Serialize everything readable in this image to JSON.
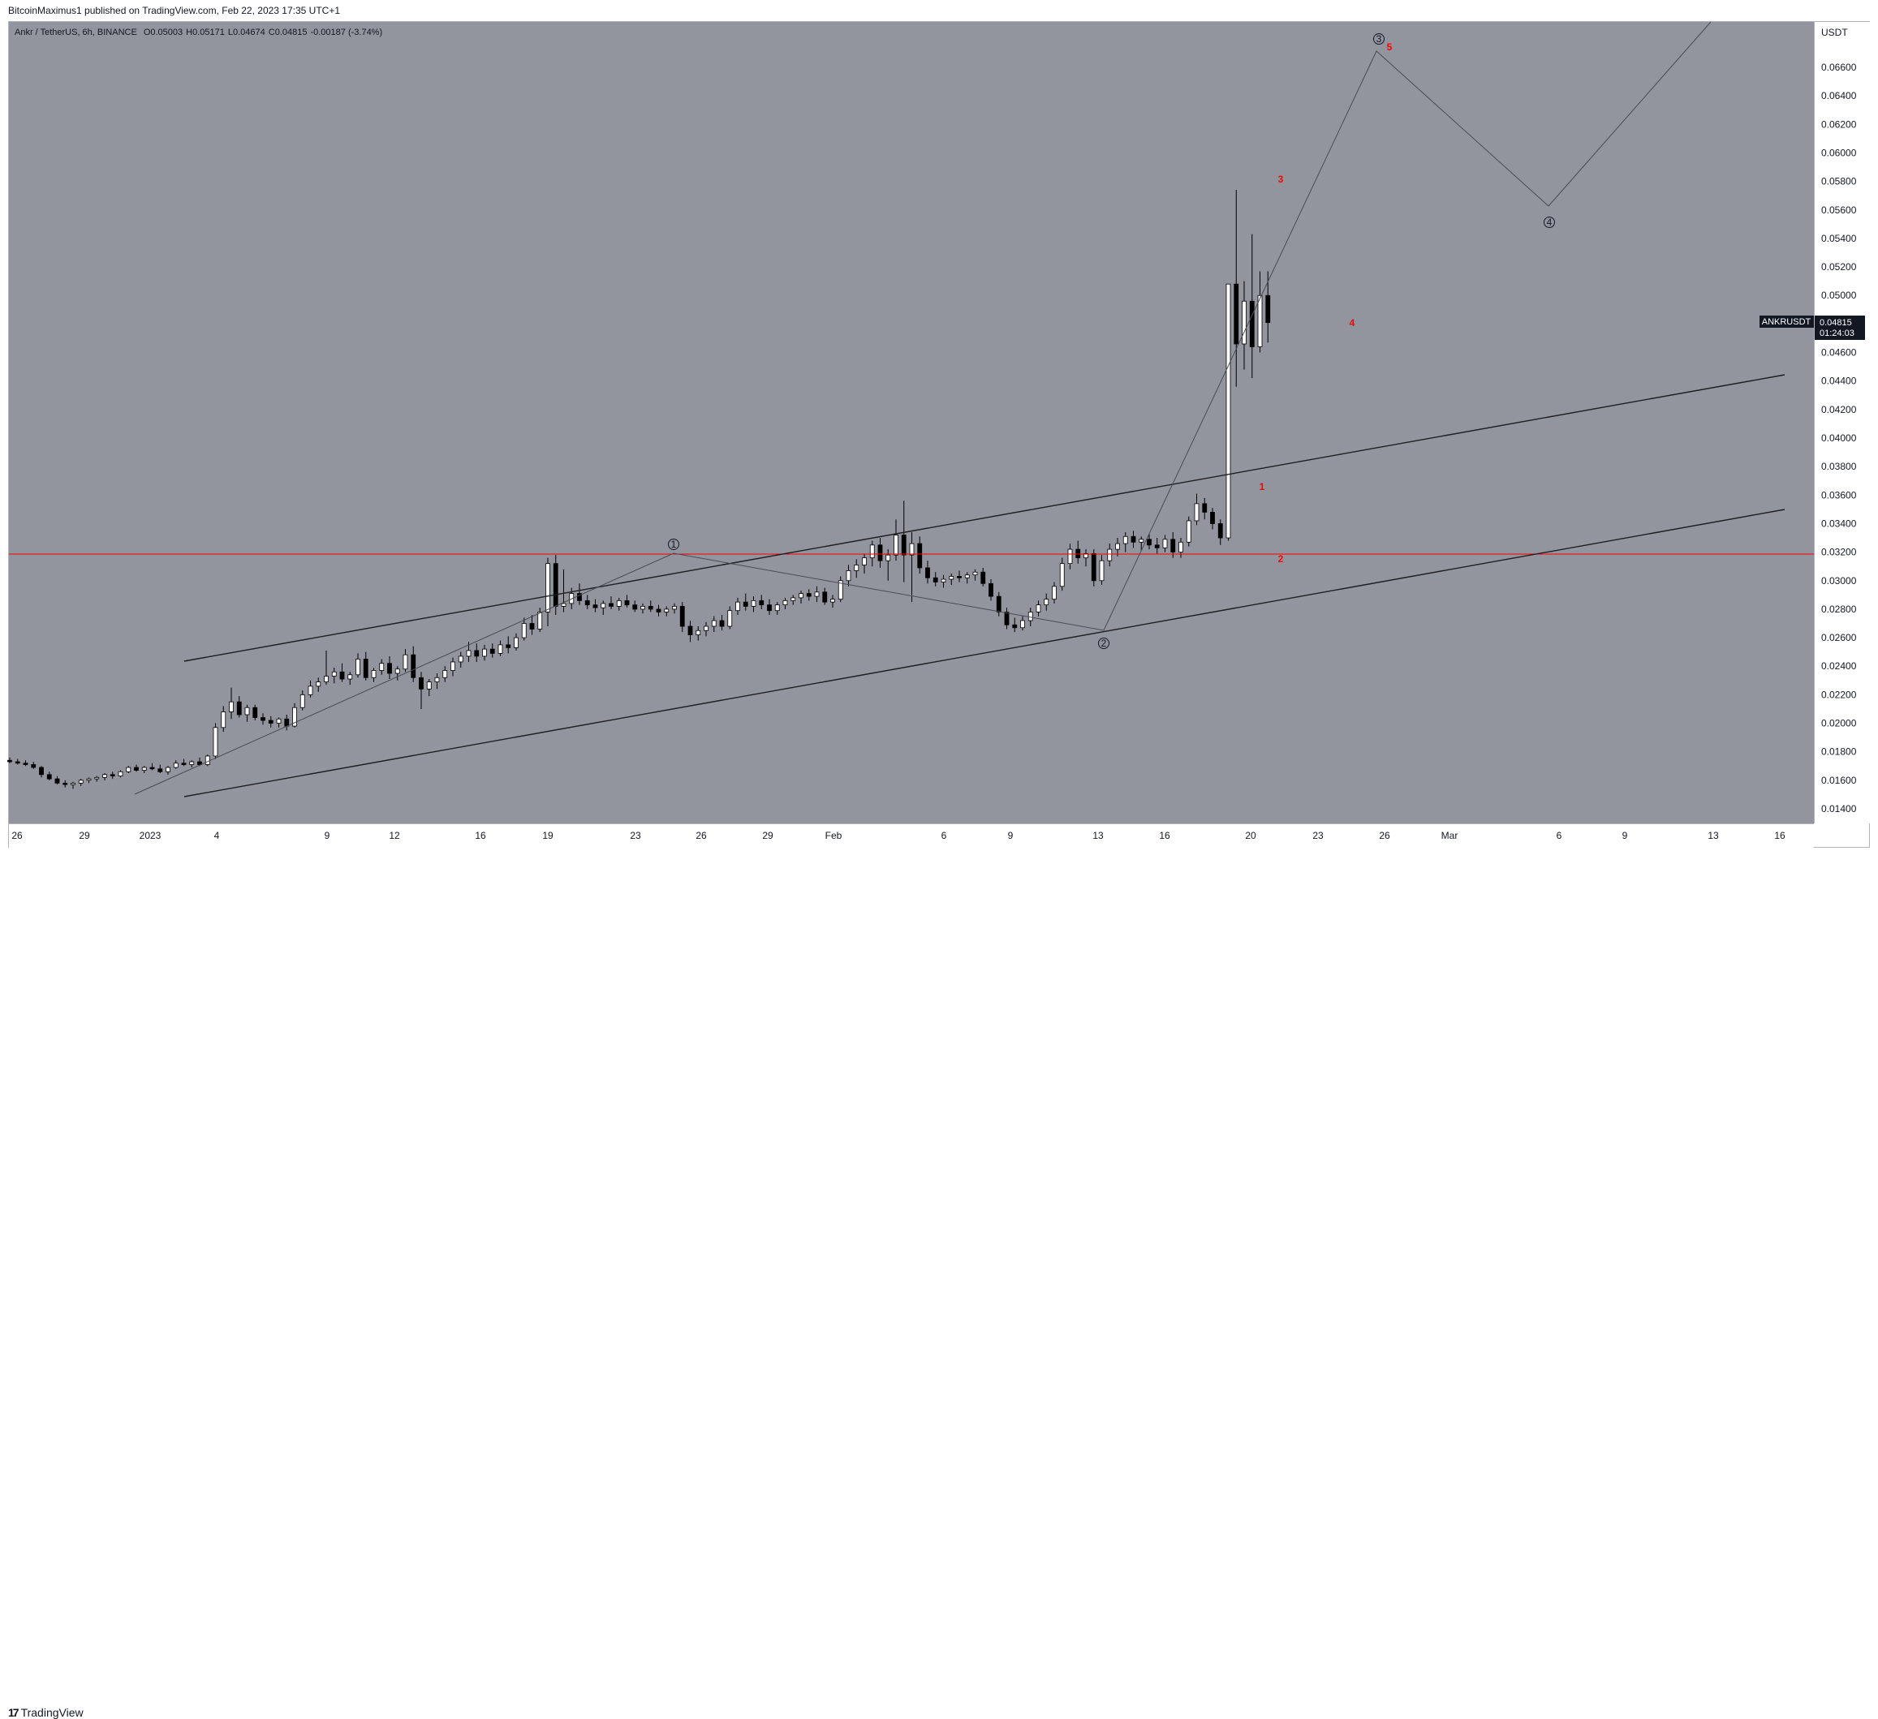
{
  "header": {
    "publisher_text": "BitcoinMaximus1 published on TradingView.com, Feb 22, 2023 17:35 UTC+1"
  },
  "legend": {
    "symbol_text": "Ankr / TetherUS, 6h, BINANCE",
    "o_label": "O",
    "o_value": "0.05003",
    "h_label": "H",
    "h_value": "0.05171",
    "l_label": "L",
    "l_value": "0.04674",
    "c_label": "C",
    "c_value": "0.04815",
    "change": "-0.00187 (-3.74%)"
  },
  "price_axis": {
    "currency": "USDT",
    "ticks": [
      "0.06600",
      "0.06400",
      "0.06200",
      "0.06000",
      "0.05800",
      "0.05600",
      "0.05400",
      "0.05200",
      "0.05000",
      "0.04600",
      "0.04400",
      "0.04200",
      "0.04000",
      "0.03800",
      "0.03600",
      "0.03400",
      "0.03200",
      "0.03000",
      "0.02800",
      "0.02600",
      "0.02400",
      "0.02200",
      "0.02000",
      "0.01800",
      "0.01600",
      "0.01400"
    ],
    "symbol_tag": "ANKRUSDT",
    "last_price": "0.04815",
    "countdown": "01:24:03"
  },
  "time_axis": {
    "ticks": [
      "26",
      "29",
      "2023",
      "4",
      "9",
      "12",
      "16",
      "19",
      "23",
      "26",
      "29",
      "Feb",
      "6",
      "9",
      "13",
      "16",
      "20",
      "23",
      "26",
      "Mar",
      "6",
      "9",
      "13",
      "16"
    ]
  },
  "annotations": {
    "wave_circles": [
      "1",
      "2",
      "3",
      "4"
    ],
    "red_counts": [
      "1",
      "2",
      "3",
      "4",
      "5"
    ]
  },
  "footer": {
    "brand": "TradingView"
  },
  "colors": {
    "plot_bg": "#92949e",
    "horizontal_line": "#ff0000",
    "channel": "#1e1e1e",
    "wave_path": "#5a5c64",
    "wave_count": "#ff0000"
  },
  "chart_data": {
    "type": "candlestick",
    "symbol": "ANKRUSDT",
    "timeframe": "6h",
    "y_range": [
      0.0132,
      0.0688
    ],
    "horizontal_level": 0.0318,
    "candles": [
      {
        "o": 0.0174,
        "h": 0.0176,
        "l": 0.0172,
        "c": 0.0173
      },
      {
        "o": 0.0173,
        "h": 0.0175,
        "l": 0.0171,
        "c": 0.0172
      },
      {
        "o": 0.0172,
        "h": 0.0174,
        "l": 0.017,
        "c": 0.0171
      },
      {
        "o": 0.0171,
        "h": 0.0173,
        "l": 0.0168,
        "c": 0.0169
      },
      {
        "o": 0.0169,
        "h": 0.017,
        "l": 0.0162,
        "c": 0.0164
      },
      {
        "o": 0.0164,
        "h": 0.0166,
        "l": 0.016,
        "c": 0.0161
      },
      {
        "o": 0.0161,
        "h": 0.0163,
        "l": 0.0157,
        "c": 0.0158
      },
      {
        "o": 0.0158,
        "h": 0.016,
        "l": 0.0155,
        "c": 0.0157
      },
      {
        "o": 0.0157,
        "h": 0.0159,
        "l": 0.0154,
        "c": 0.0158
      },
      {
        "o": 0.0158,
        "h": 0.0161,
        "l": 0.0156,
        "c": 0.016
      },
      {
        "o": 0.016,
        "h": 0.0162,
        "l": 0.0158,
        "c": 0.0161
      },
      {
        "o": 0.0161,
        "h": 0.0163,
        "l": 0.0159,
        "c": 0.0162
      },
      {
        "o": 0.0162,
        "h": 0.0165,
        "l": 0.016,
        "c": 0.0164
      },
      {
        "o": 0.0164,
        "h": 0.0166,
        "l": 0.0161,
        "c": 0.0163
      },
      {
        "o": 0.0163,
        "h": 0.0167,
        "l": 0.0162,
        "c": 0.0166
      },
      {
        "o": 0.0166,
        "h": 0.017,
        "l": 0.0165,
        "c": 0.0169
      },
      {
        "o": 0.0169,
        "h": 0.0171,
        "l": 0.0166,
        "c": 0.0167
      },
      {
        "o": 0.0167,
        "h": 0.017,
        "l": 0.0165,
        "c": 0.0169
      },
      {
        "o": 0.0169,
        "h": 0.0172,
        "l": 0.0167,
        "c": 0.0168
      },
      {
        "o": 0.0168,
        "h": 0.0171,
        "l": 0.0165,
        "c": 0.0166
      },
      {
        "o": 0.0166,
        "h": 0.017,
        "l": 0.0164,
        "c": 0.0169
      },
      {
        "o": 0.0169,
        "h": 0.0174,
        "l": 0.0168,
        "c": 0.0172
      },
      {
        "o": 0.0172,
        "h": 0.0175,
        "l": 0.017,
        "c": 0.0171
      },
      {
        "o": 0.0171,
        "h": 0.0174,
        "l": 0.0169,
        "c": 0.0173
      },
      {
        "o": 0.0173,
        "h": 0.0176,
        "l": 0.017,
        "c": 0.0171
      },
      {
        "o": 0.0171,
        "h": 0.0178,
        "l": 0.017,
        "c": 0.0177
      },
      {
        "o": 0.0177,
        "h": 0.02,
        "l": 0.0175,
        "c": 0.0197
      },
      {
        "o": 0.0197,
        "h": 0.0212,
        "l": 0.0194,
        "c": 0.0208
      },
      {
        "o": 0.0208,
        "h": 0.0225,
        "l": 0.0203,
        "c": 0.0215
      },
      {
        "o": 0.0215,
        "h": 0.0219,
        "l": 0.0204,
        "c": 0.0206
      },
      {
        "o": 0.0206,
        "h": 0.0213,
        "l": 0.0201,
        "c": 0.0211
      },
      {
        "o": 0.0211,
        "h": 0.0213,
        "l": 0.0202,
        "c": 0.0204
      },
      {
        "o": 0.0204,
        "h": 0.0207,
        "l": 0.0199,
        "c": 0.0202
      },
      {
        "o": 0.0202,
        "h": 0.0205,
        "l": 0.0197,
        "c": 0.02
      },
      {
        "o": 0.02,
        "h": 0.0204,
        "l": 0.0197,
        "c": 0.0203
      },
      {
        "o": 0.0203,
        "h": 0.0206,
        "l": 0.0195,
        "c": 0.0198
      },
      {
        "o": 0.0198,
        "h": 0.0214,
        "l": 0.0197,
        "c": 0.0211
      },
      {
        "o": 0.0211,
        "h": 0.0223,
        "l": 0.0209,
        "c": 0.022
      },
      {
        "o": 0.022,
        "h": 0.023,
        "l": 0.0218,
        "c": 0.0226
      },
      {
        "o": 0.0226,
        "h": 0.0232,
        "l": 0.0222,
        "c": 0.0229
      },
      {
        "o": 0.0229,
        "h": 0.0251,
        "l": 0.0227,
        "c": 0.0233
      },
      {
        "o": 0.0233,
        "h": 0.0239,
        "l": 0.0228,
        "c": 0.0236
      },
      {
        "o": 0.0236,
        "h": 0.0242,
        "l": 0.0229,
        "c": 0.0231
      },
      {
        "o": 0.0231,
        "h": 0.0236,
        "l": 0.0227,
        "c": 0.0234
      },
      {
        "o": 0.0234,
        "h": 0.0249,
        "l": 0.0232,
        "c": 0.0245
      },
      {
        "o": 0.0245,
        "h": 0.025,
        "l": 0.023,
        "c": 0.0232
      },
      {
        "o": 0.0232,
        "h": 0.0239,
        "l": 0.0229,
        "c": 0.0237
      },
      {
        "o": 0.0237,
        "h": 0.0245,
        "l": 0.0234,
        "c": 0.0242
      },
      {
        "o": 0.0242,
        "h": 0.0247,
        "l": 0.0231,
        "c": 0.0235
      },
      {
        "o": 0.0235,
        "h": 0.024,
        "l": 0.023,
        "c": 0.0238
      },
      {
        "o": 0.0238,
        "h": 0.0252,
        "l": 0.0236,
        "c": 0.0248
      },
      {
        "o": 0.0248,
        "h": 0.0254,
        "l": 0.0229,
        "c": 0.0232
      },
      {
        "o": 0.0232,
        "h": 0.0236,
        "l": 0.021,
        "c": 0.0224
      },
      {
        "o": 0.0224,
        "h": 0.0231,
        "l": 0.0219,
        "c": 0.0229
      },
      {
        "o": 0.0229,
        "h": 0.0235,
        "l": 0.0224,
        "c": 0.0232
      },
      {
        "o": 0.0232,
        "h": 0.024,
        "l": 0.0229,
        "c": 0.0237
      },
      {
        "o": 0.0237,
        "h": 0.0246,
        "l": 0.0233,
        "c": 0.0243
      },
      {
        "o": 0.0243,
        "h": 0.025,
        "l": 0.0239,
        "c": 0.0247
      },
      {
        "o": 0.0247,
        "h": 0.0257,
        "l": 0.0243,
        "c": 0.0251
      },
      {
        "o": 0.0251,
        "h": 0.0256,
        "l": 0.0243,
        "c": 0.0247
      },
      {
        "o": 0.0247,
        "h": 0.0255,
        "l": 0.0244,
        "c": 0.0252
      },
      {
        "o": 0.0252,
        "h": 0.0256,
        "l": 0.0246,
        "c": 0.0249
      },
      {
        "o": 0.0249,
        "h": 0.0258,
        "l": 0.0247,
        "c": 0.0255
      },
      {
        "o": 0.0255,
        "h": 0.0261,
        "l": 0.0249,
        "c": 0.0253
      },
      {
        "o": 0.0253,
        "h": 0.0263,
        "l": 0.0251,
        "c": 0.026
      },
      {
        "o": 0.026,
        "h": 0.0274,
        "l": 0.0258,
        "c": 0.027
      },
      {
        "o": 0.027,
        "h": 0.0276,
        "l": 0.0262,
        "c": 0.0266
      },
      {
        "o": 0.0266,
        "h": 0.0281,
        "l": 0.0264,
        "c": 0.0278
      },
      {
        "o": 0.0278,
        "h": 0.0316,
        "l": 0.0268,
        "c": 0.0312
      },
      {
        "o": 0.0312,
        "h": 0.0318,
        "l": 0.0276,
        "c": 0.0282
      },
      {
        "o": 0.0282,
        "h": 0.0308,
        "l": 0.0278,
        "c": 0.0284
      },
      {
        "o": 0.0284,
        "h": 0.0295,
        "l": 0.028,
        "c": 0.0291
      },
      {
        "o": 0.0291,
        "h": 0.0298,
        "l": 0.0283,
        "c": 0.0286
      },
      {
        "o": 0.0286,
        "h": 0.029,
        "l": 0.028,
        "c": 0.0283
      },
      {
        "o": 0.0283,
        "h": 0.0287,
        "l": 0.0278,
        "c": 0.0281
      },
      {
        "o": 0.0281,
        "h": 0.0286,
        "l": 0.0276,
        "c": 0.0284
      },
      {
        "o": 0.0284,
        "h": 0.0289,
        "l": 0.028,
        "c": 0.0282
      },
      {
        "o": 0.0282,
        "h": 0.0288,
        "l": 0.0279,
        "c": 0.0286
      },
      {
        "o": 0.0286,
        "h": 0.029,
        "l": 0.0281,
        "c": 0.0283
      },
      {
        "o": 0.0283,
        "h": 0.0286,
        "l": 0.0278,
        "c": 0.028
      },
      {
        "o": 0.028,
        "h": 0.0284,
        "l": 0.0277,
        "c": 0.0282
      },
      {
        "o": 0.0282,
        "h": 0.0286,
        "l": 0.0278,
        "c": 0.028
      },
      {
        "o": 0.028,
        "h": 0.0283,
        "l": 0.0275,
        "c": 0.0278
      },
      {
        "o": 0.0278,
        "h": 0.0282,
        "l": 0.0275,
        "c": 0.028
      },
      {
        "o": 0.028,
        "h": 0.0284,
        "l": 0.0277,
        "c": 0.0282
      },
      {
        "o": 0.0282,
        "h": 0.0285,
        "l": 0.0264,
        "c": 0.0268
      },
      {
        "o": 0.0268,
        "h": 0.0272,
        "l": 0.0257,
        "c": 0.0262
      },
      {
        "o": 0.0262,
        "h": 0.0268,
        "l": 0.0258,
        "c": 0.0265
      },
      {
        "o": 0.0265,
        "h": 0.0271,
        "l": 0.0261,
        "c": 0.0268
      },
      {
        "o": 0.0268,
        "h": 0.0275,
        "l": 0.0264,
        "c": 0.0272
      },
      {
        "o": 0.0272,
        "h": 0.0276,
        "l": 0.0265,
        "c": 0.0268
      },
      {
        "o": 0.0268,
        "h": 0.0282,
        "l": 0.0266,
        "c": 0.0279
      },
      {
        "o": 0.0279,
        "h": 0.0288,
        "l": 0.0276,
        "c": 0.0285
      },
      {
        "o": 0.0285,
        "h": 0.0291,
        "l": 0.0279,
        "c": 0.0282
      },
      {
        "o": 0.0282,
        "h": 0.0289,
        "l": 0.0278,
        "c": 0.0286
      },
      {
        "o": 0.0286,
        "h": 0.029,
        "l": 0.028,
        "c": 0.0283
      },
      {
        "o": 0.0283,
        "h": 0.0287,
        "l": 0.0276,
        "c": 0.0279
      },
      {
        "o": 0.0279,
        "h": 0.0285,
        "l": 0.0276,
        "c": 0.0283
      },
      {
        "o": 0.0283,
        "h": 0.0288,
        "l": 0.028,
        "c": 0.0286
      },
      {
        "o": 0.0286,
        "h": 0.029,
        "l": 0.0283,
        "c": 0.0288
      },
      {
        "o": 0.0288,
        "h": 0.0293,
        "l": 0.0284,
        "c": 0.0291
      },
      {
        "o": 0.0291,
        "h": 0.0294,
        "l": 0.0286,
        "c": 0.0289
      },
      {
        "o": 0.0289,
        "h": 0.0296,
        "l": 0.0285,
        "c": 0.0292
      },
      {
        "o": 0.0292,
        "h": 0.0295,
        "l": 0.0283,
        "c": 0.0285
      },
      {
        "o": 0.0285,
        "h": 0.029,
        "l": 0.0281,
        "c": 0.0287
      },
      {
        "o": 0.0287,
        "h": 0.0303,
        "l": 0.0285,
        "c": 0.03
      },
      {
        "o": 0.03,
        "h": 0.0311,
        "l": 0.0296,
        "c": 0.0307
      },
      {
        "o": 0.0307,
        "h": 0.0315,
        "l": 0.0302,
        "c": 0.0311
      },
      {
        "o": 0.0311,
        "h": 0.0319,
        "l": 0.0305,
        "c": 0.0316
      },
      {
        "o": 0.0316,
        "h": 0.0328,
        "l": 0.031,
        "c": 0.0325
      },
      {
        "o": 0.0325,
        "h": 0.033,
        "l": 0.0309,
        "c": 0.0314
      },
      {
        "o": 0.0314,
        "h": 0.0322,
        "l": 0.03,
        "c": 0.0318
      },
      {
        "o": 0.0318,
        "h": 0.0343,
        "l": 0.0314,
        "c": 0.0332
      },
      {
        "o": 0.0332,
        "h": 0.0356,
        "l": 0.0299,
        "c": 0.0318
      },
      {
        "o": 0.0318,
        "h": 0.0334,
        "l": 0.0285,
        "c": 0.0326
      },
      {
        "o": 0.0326,
        "h": 0.0331,
        "l": 0.0305,
        "c": 0.0309
      },
      {
        "o": 0.0309,
        "h": 0.0314,
        "l": 0.0298,
        "c": 0.0302
      },
      {
        "o": 0.0302,
        "h": 0.0306,
        "l": 0.0296,
        "c": 0.0299
      },
      {
        "o": 0.0299,
        "h": 0.0304,
        "l": 0.0295,
        "c": 0.0301
      },
      {
        "o": 0.0301,
        "h": 0.0305,
        "l": 0.0297,
        "c": 0.0303
      },
      {
        "o": 0.0303,
        "h": 0.0307,
        "l": 0.0299,
        "c": 0.0302
      },
      {
        "o": 0.0302,
        "h": 0.0306,
        "l": 0.0298,
        "c": 0.0304
      },
      {
        "o": 0.0304,
        "h": 0.0308,
        "l": 0.03,
        "c": 0.0306
      },
      {
        "o": 0.0306,
        "h": 0.0309,
        "l": 0.0296,
        "c": 0.0298
      },
      {
        "o": 0.0298,
        "h": 0.0301,
        "l": 0.0286,
        "c": 0.0289
      },
      {
        "o": 0.0289,
        "h": 0.0292,
        "l": 0.0275,
        "c": 0.0278
      },
      {
        "o": 0.0278,
        "h": 0.0281,
        "l": 0.0266,
        "c": 0.0269
      },
      {
        "o": 0.0269,
        "h": 0.0274,
        "l": 0.0264,
        "c": 0.0267
      },
      {
        "o": 0.0267,
        "h": 0.0275,
        "l": 0.0265,
        "c": 0.0272
      },
      {
        "o": 0.0272,
        "h": 0.0281,
        "l": 0.0268,
        "c": 0.0278
      },
      {
        "o": 0.0278,
        "h": 0.0286,
        "l": 0.0275,
        "c": 0.0283
      },
      {
        "o": 0.0283,
        "h": 0.0291,
        "l": 0.0279,
        "c": 0.0287
      },
      {
        "o": 0.0287,
        "h": 0.0299,
        "l": 0.0284,
        "c": 0.0296
      },
      {
        "o": 0.0296,
        "h": 0.0316,
        "l": 0.0293,
        "c": 0.0312
      },
      {
        "o": 0.0312,
        "h": 0.0326,
        "l": 0.0308,
        "c": 0.0322
      },
      {
        "o": 0.0322,
        "h": 0.0328,
        "l": 0.0312,
        "c": 0.0316
      },
      {
        "o": 0.0316,
        "h": 0.0322,
        "l": 0.031,
        "c": 0.0319
      },
      {
        "o": 0.0319,
        "h": 0.0322,
        "l": 0.0296,
        "c": 0.03
      },
      {
        "o": 0.03,
        "h": 0.0318,
        "l": 0.0297,
        "c": 0.0314
      },
      {
        "o": 0.0314,
        "h": 0.0326,
        "l": 0.031,
        "c": 0.0322
      },
      {
        "o": 0.0322,
        "h": 0.033,
        "l": 0.0317,
        "c": 0.0326
      },
      {
        "o": 0.0326,
        "h": 0.0334,
        "l": 0.032,
        "c": 0.0331
      },
      {
        "o": 0.0331,
        "h": 0.0335,
        "l": 0.0323,
        "c": 0.0327
      },
      {
        "o": 0.0327,
        "h": 0.0331,
        "l": 0.0321,
        "c": 0.0329
      },
      {
        "o": 0.0329,
        "h": 0.0333,
        "l": 0.0322,
        "c": 0.0325
      },
      {
        "o": 0.0325,
        "h": 0.033,
        "l": 0.0319,
        "c": 0.0323
      },
      {
        "o": 0.0323,
        "h": 0.0332,
        "l": 0.032,
        "c": 0.0329
      },
      {
        "o": 0.0329,
        "h": 0.0334,
        "l": 0.0316,
        "c": 0.032
      },
      {
        "o": 0.032,
        "h": 0.033,
        "l": 0.0316,
        "c": 0.0327
      },
      {
        "o": 0.0327,
        "h": 0.0345,
        "l": 0.0324,
        "c": 0.0342
      },
      {
        "o": 0.0342,
        "h": 0.0361,
        "l": 0.0339,
        "c": 0.0354
      },
      {
        "o": 0.0354,
        "h": 0.0358,
        "l": 0.0343,
        "c": 0.0348
      },
      {
        "o": 0.0348,
        "h": 0.0351,
        "l": 0.0336,
        "c": 0.034
      },
      {
        "o": 0.034,
        "h": 0.0343,
        "l": 0.0325,
        "c": 0.033
      },
      {
        "o": 0.033,
        "h": 0.0508,
        "l": 0.0328,
        "c": 0.0508
      },
      {
        "o": 0.0508,
        "h": 0.0574,
        "l": 0.0436,
        "c": 0.0466
      },
      {
        "o": 0.0466,
        "h": 0.051,
        "l": 0.0448,
        "c": 0.0496
      },
      {
        "o": 0.0496,
        "h": 0.0543,
        "l": 0.0442,
        "c": 0.0464
      },
      {
        "o": 0.0464,
        "h": 0.0517,
        "l": 0.046,
        "c": 0.05
      },
      {
        "o": 0.05,
        "h": 0.0517,
        "l": 0.0467,
        "c": 0.0481
      }
    ]
  }
}
